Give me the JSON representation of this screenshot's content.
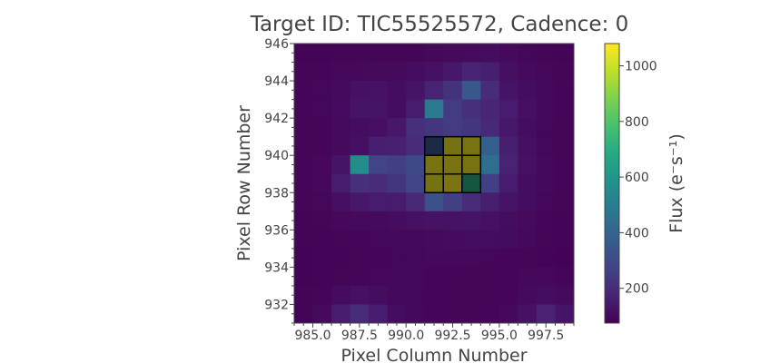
{
  "chart_data": {
    "type": "heatmap",
    "title": "Target ID: TIC55525572, Cadence: 0",
    "xlabel": "Pixel Column Number",
    "ylabel": "Pixel Row Number",
    "xlim": [
      984.0,
      999.0
    ],
    "ylim": [
      931.0,
      946.0
    ],
    "x_ticks": [
      985.0,
      987.5,
      990.0,
      992.5,
      995.0,
      997.5
    ],
    "x_tick_labels": [
      "985.0",
      "987.5",
      "990.0",
      "992.5",
      "995.0",
      "997.5"
    ],
    "y_ticks": [
      932,
      934,
      936,
      938,
      940,
      942,
      944,
      946
    ],
    "y_tick_labels": [
      "932",
      "934",
      "936",
      "938",
      "940",
      "942",
      "944",
      "946"
    ],
    "col_start": 984,
    "row_start": 931,
    "colorbar": {
      "label": "Flux (e⁻s⁻¹)",
      "colormap": "viridis",
      "vmin": 75,
      "vmax": 1080,
      "ticks": [
        200,
        400,
        600,
        800,
        1000
      ],
      "tick_labels": [
        "200",
        "400",
        "600",
        "800",
        "1000"
      ]
    },
    "aperture_color": "#000000",
    "aperture_mask": [
      [
        940,
        991
      ],
      [
        940,
        992
      ],
      [
        940,
        993
      ],
      [
        939,
        991
      ],
      [
        939,
        992
      ],
      [
        939,
        993
      ],
      [
        938,
        991
      ],
      [
        938,
        992
      ],
      [
        938,
        993
      ]
    ],
    "flux_rows_top_to_bottom": [
      [
        85,
        85,
        88,
        88,
        88,
        88,
        90,
        95,
        100,
        105,
        110,
        100,
        92,
        88,
        85
      ],
      [
        88,
        90,
        92,
        95,
        100,
        100,
        110,
        120,
        140,
        175,
        160,
        115,
        100,
        92,
        88
      ],
      [
        90,
        92,
        100,
        120,
        125,
        110,
        130,
        170,
        220,
        350,
        200,
        130,
        110,
        95,
        90
      ],
      [
        90,
        92,
        105,
        130,
        130,
        110,
        150,
        480,
        250,
        210,
        180,
        150,
        115,
        95,
        90
      ],
      [
        88,
        90,
        100,
        110,
        115,
        140,
        210,
        230,
        250,
        230,
        190,
        140,
        110,
        92,
        88
      ],
      [
        88,
        90,
        100,
        115,
        160,
        165,
        200,
        340,
        1050,
        1060,
        380,
        160,
        115,
        92,
        88
      ],
      [
        90,
        95,
        130,
        560,
        280,
        260,
        300,
        1060,
        1070,
        1060,
        440,
        170,
        120,
        95,
        90
      ],
      [
        90,
        95,
        150,
        210,
        200,
        230,
        280,
        1050,
        1080,
        700,
        260,
        150,
        110,
        95,
        90
      ],
      [
        88,
        92,
        115,
        140,
        150,
        150,
        190,
        320,
        260,
        200,
        160,
        130,
        110,
        92,
        88
      ],
      [
        85,
        88,
        95,
        100,
        100,
        110,
        120,
        125,
        125,
        130,
        120,
        110,
        100,
        90,
        85
      ],
      [
        85,
        85,
        88,
        90,
        92,
        95,
        95,
        100,
        105,
        110,
        110,
        105,
        95,
        88,
        85
      ],
      [
        82,
        85,
        85,
        88,
        90,
        92,
        92,
        95,
        95,
        95,
        92,
        90,
        88,
        85,
        82
      ],
      [
        82,
        85,
        88,
        90,
        92,
        95,
        95,
        90,
        90,
        88,
        88,
        90,
        95,
        95,
        90
      ],
      [
        85,
        90,
        105,
        120,
        110,
        95,
        92,
        90,
        88,
        88,
        88,
        90,
        100,
        110,
        100
      ],
      [
        85,
        100,
        150,
        200,
        150,
        110,
        95,
        90,
        88,
        88,
        90,
        95,
        120,
        170,
        130
      ]
    ]
  }
}
